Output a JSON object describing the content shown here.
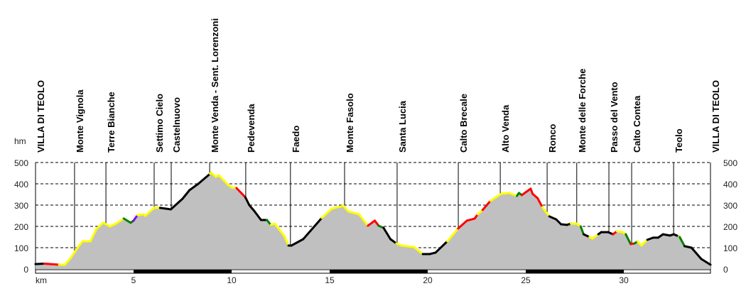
{
  "chart_data": {
    "type": "area",
    "title": "",
    "xlabel": "km",
    "ylabel": "hm",
    "xlim": [
      0,
      34.42
    ],
    "ylim": [
      0,
      500
    ],
    "yticks": [
      0,
      100,
      200,
      300,
      400,
      500
    ],
    "xticks": [
      5,
      10,
      15,
      20,
      25,
      30
    ],
    "grid": true,
    "fill_color": "#c0c0c0",
    "colors": {
      "black": "#000000",
      "red": "#ff0000",
      "yellow": "#ffff00",
      "green": "#008000",
      "purple": "#8000ff"
    },
    "profile": [
      [
        0,
        23,
        "black"
      ],
      [
        0.45,
        25,
        "black"
      ],
      [
        1.2,
        20,
        "red"
      ],
      [
        1.5,
        20,
        "yellow"
      ],
      [
        1.8,
        53,
        "yellow"
      ],
      [
        2.2,
        107,
        "yellow"
      ],
      [
        2.4,
        130,
        "yellow"
      ],
      [
        2.8,
        130,
        "yellow"
      ],
      [
        3.1,
        187,
        "yellow"
      ],
      [
        3.45,
        217,
        "yellow"
      ],
      [
        3.8,
        200,
        "yellow"
      ],
      [
        4.1,
        213,
        "yellow"
      ],
      [
        4.5,
        237,
        "yellow"
      ],
      [
        4.85,
        217,
        "green"
      ],
      [
        5.0,
        227,
        "green"
      ],
      [
        5.2,
        253,
        "purple"
      ],
      [
        5.5,
        257,
        "yellow"
      ],
      [
        5.6,
        250,
        "yellow"
      ],
      [
        6.05,
        287,
        "yellow"
      ],
      [
        6.35,
        287,
        "yellow"
      ],
      [
        6.9,
        280,
        "black"
      ],
      [
        7.5,
        330,
        "black"
      ],
      [
        7.85,
        370,
        "black"
      ],
      [
        8.3,
        400,
        "black"
      ],
      [
        8.9,
        447,
        "black"
      ],
      [
        8.95,
        453,
        "yellow"
      ],
      [
        9.2,
        433,
        "yellow"
      ],
      [
        9.35,
        440,
        "yellow"
      ],
      [
        9.8,
        397,
        "yellow"
      ],
      [
        10.0,
        383,
        "yellow"
      ],
      [
        10.25,
        380,
        "yellow"
      ],
      [
        10.7,
        337,
        "red"
      ],
      [
        10.9,
        300,
        "black"
      ],
      [
        11.15,
        273,
        "black"
      ],
      [
        11.5,
        230,
        "black"
      ],
      [
        11.8,
        230,
        "black"
      ],
      [
        12.0,
        207,
        "green"
      ],
      [
        12.2,
        213,
        "yellow"
      ],
      [
        12.7,
        153,
        "yellow"
      ],
      [
        12.9,
        110,
        "yellow"
      ],
      [
        13.05,
        110,
        "black"
      ],
      [
        13.65,
        140,
        "black"
      ],
      [
        14.6,
        240,
        "black"
      ],
      [
        15.1,
        283,
        "yellow"
      ],
      [
        15.7,
        297,
        "yellow"
      ],
      [
        15.95,
        270,
        "yellow"
      ],
      [
        16.5,
        257,
        "yellow"
      ],
      [
        16.95,
        203,
        "yellow"
      ],
      [
        17.3,
        227,
        "red"
      ],
      [
        17.5,
        203,
        "red"
      ],
      [
        17.75,
        193,
        "green"
      ],
      [
        18.1,
        140,
        "black"
      ],
      [
        18.4,
        120,
        "black"
      ],
      [
        18.65,
        110,
        "yellow"
      ],
      [
        19.3,
        103,
        "yellow"
      ],
      [
        19.75,
        70,
        "yellow"
      ],
      [
        20.1,
        70,
        "black"
      ],
      [
        20.4,
        77,
        "black"
      ],
      [
        21.0,
        130,
        "black"
      ],
      [
        21.55,
        190,
        "yellow"
      ],
      [
        22.0,
        227,
        "red"
      ],
      [
        22.4,
        237,
        "red"
      ],
      [
        22.55,
        257,
        "red"
      ],
      [
        22.8,
        277,
        "yellow"
      ],
      [
        23.2,
        320,
        "red"
      ],
      [
        23.75,
        353,
        "yellow"
      ],
      [
        24.15,
        357,
        "yellow"
      ],
      [
        24.55,
        343,
        "yellow"
      ],
      [
        24.65,
        357,
        "green"
      ],
      [
        24.8,
        347,
        "green"
      ],
      [
        25.25,
        377,
        "red"
      ],
      [
        25.35,
        353,
        "red"
      ],
      [
        25.6,
        333,
        "red"
      ],
      [
        25.85,
        290,
        "red"
      ],
      [
        26.2,
        247,
        "yellow"
      ],
      [
        26.55,
        233,
        "black"
      ],
      [
        26.8,
        210,
        "black"
      ],
      [
        27.1,
        207,
        "black"
      ],
      [
        27.3,
        213,
        "black"
      ],
      [
        27.6,
        213,
        "yellow"
      ],
      [
        27.8,
        200,
        "yellow"
      ],
      [
        27.95,
        163,
        "green"
      ],
      [
        28.25,
        150,
        "black"
      ],
      [
        28.4,
        143,
        "yellow"
      ],
      [
        28.7,
        163,
        "yellow"
      ],
      [
        28.85,
        173,
        "black"
      ],
      [
        29.2,
        173,
        "black"
      ],
      [
        29.45,
        163,
        "black"
      ],
      [
        29.65,
        177,
        "red"
      ],
      [
        29.95,
        173,
        "yellow"
      ],
      [
        30.1,
        163,
        "yellow"
      ],
      [
        30.35,
        117,
        "green"
      ],
      [
        30.55,
        120,
        "red"
      ],
      [
        30.7,
        130,
        "green"
      ],
      [
        30.9,
        110,
        "yellow"
      ],
      [
        31.2,
        137,
        "yellow"
      ],
      [
        31.5,
        147,
        "black"
      ],
      [
        31.75,
        147,
        "black"
      ],
      [
        32.0,
        163,
        "black"
      ],
      [
        32.35,
        157,
        "black"
      ],
      [
        32.55,
        163,
        "black"
      ],
      [
        32.8,
        153,
        "black"
      ],
      [
        32.85,
        150,
        "yellow"
      ],
      [
        33.1,
        107,
        "green"
      ],
      [
        33.45,
        100,
        "black"
      ],
      [
        33.95,
        47,
        "black"
      ],
      [
        34.42,
        20,
        "black"
      ]
    ],
    "waypoints": [
      {
        "name": "VILLA DI TEOLO",
        "km": 0
      },
      {
        "name": "Monte Vignola",
        "km": 1.99
      },
      {
        "name": "Terre Bianche",
        "km": 3.59
      },
      {
        "name": "Settimo Cielo",
        "km": 6.05
      },
      {
        "name": "Castelnuovo",
        "km": 6.92
      },
      {
        "name": "Monte Venda - Sent. Lorenzoni",
        "km": 8.88
      },
      {
        "name": "Pedevenda",
        "km": 10.72
      },
      {
        "name": "Faedo",
        "km": 13.0
      },
      {
        "name": "Monte Fasolo",
        "km": 15.76
      },
      {
        "name": "Santa Lucia",
        "km": 18.44
      },
      {
        "name": "Calto Brecale",
        "km": 21.56
      },
      {
        "name": "Alto Venda",
        "km": 23.7
      },
      {
        "name": "Ronco",
        "km": 26.09
      },
      {
        "name": "Monte delle Forche",
        "km": 27.6
      },
      {
        "name": "Passo del Vento",
        "km": 29.24
      },
      {
        "name": "Calto Contea",
        "km": 30.4
      },
      {
        "name": "Teolo",
        "km": 32.54
      },
      {
        "name": "VILLA DI TEOLO",
        "km": 34.42
      }
    ]
  }
}
